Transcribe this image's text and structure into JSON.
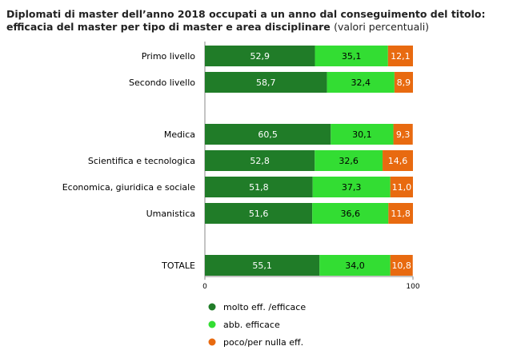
{
  "title": {
    "main": "Diplomati di master dell’anno 2018 occupati a un anno dal conseguimento del titolo: efficacia del master per tipo di master e area disciplinare",
    "unit": "(valori percentuali)"
  },
  "colors": {
    "molto": "#207c28",
    "abb": "#33dd33",
    "poco": "#e86a10",
    "axis": "#888888",
    "grid": "#cccccc"
  },
  "chart_data": {
    "type": "bar",
    "orientation": "horizontal",
    "stacked": true,
    "categories": [
      "Primo livello",
      "Secondo livello",
      "Medica",
      "Scientifica e tecnologica",
      "Economica, giuridica e sociale",
      "Umanistica",
      "TOTALE"
    ],
    "series": [
      {
        "name": "molto eff. /efficace",
        "values": [
          52.9,
          58.7,
          60.5,
          52.8,
          51.8,
          51.6,
          55.1
        ],
        "labels": [
          "52,9",
          "58,7",
          "60,5",
          "52,8",
          "51,8",
          "51,6",
          "55,1"
        ]
      },
      {
        "name": "abb. efficace",
        "values": [
          35.1,
          32.4,
          30.1,
          32.6,
          37.3,
          36.6,
          34.0
        ],
        "labels": [
          "35,1",
          "32,4",
          "30,1",
          "32,6",
          "37,3",
          "36,6",
          "34,0"
        ]
      },
      {
        "name": "poco/per nulla eff.",
        "values": [
          12.1,
          8.9,
          9.3,
          14.6,
          11.0,
          11.8,
          10.8
        ],
        "labels": [
          "12,1",
          "8,9",
          "9,3",
          "14,6",
          "11,0",
          "11,8",
          "10,8"
        ]
      }
    ],
    "xlim": [
      0,
      100
    ],
    "xticks": [
      "0",
      "100"
    ],
    "legend_position": "bottom"
  }
}
